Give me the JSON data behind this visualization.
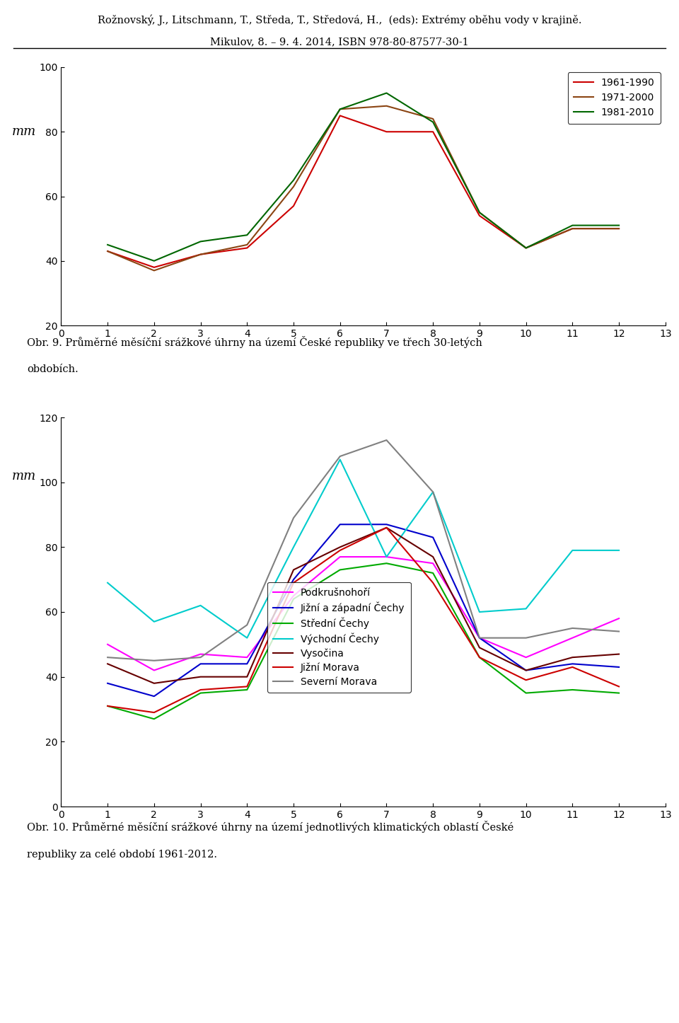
{
  "header_line1": "Rožnovský, J., Litschmann, T., Středa, T., Středová, H.,  (eds): Extrémy oběhu vody v krajině.",
  "header_line2": "Mikulov, 8. – 9. 4. 2014, ISBN 978-80-87577-30-1",
  "chart1": {
    "ylabel": "mm",
    "xlim": [
      0,
      13
    ],
    "ylim": [
      20,
      100
    ],
    "yticks": [
      20,
      40,
      60,
      80,
      100
    ],
    "xticks": [
      0,
      1,
      2,
      3,
      4,
      5,
      6,
      7,
      8,
      9,
      10,
      11,
      12,
      13
    ],
    "series": [
      {
        "label": "1961-1990",
        "color": "#cc0000",
        "data": [
          43,
          38,
          42,
          44,
          57,
          85,
          80,
          80,
          54,
          44,
          50,
          50
        ]
      },
      {
        "label": "1971-2000",
        "color": "#8B4513",
        "data": [
          43,
          37,
          42,
          45,
          63,
          87,
          88,
          84,
          55,
          44,
          50,
          50
        ]
      },
      {
        "label": "1981-2010",
        "color": "#006600",
        "data": [
          45,
          40,
          46,
          48,
          65,
          87,
          92,
          83,
          55,
          44,
          51,
          51
        ]
      }
    ],
    "caption_line1": "Obr. 9. Průměrné měsíční srážkové úhrny na území České republiky ve třech 30-letých",
    "caption_line2": "obdobích."
  },
  "chart2": {
    "ylabel": "mm",
    "xlim": [
      0,
      13
    ],
    "ylim": [
      0,
      120
    ],
    "yticks": [
      0,
      20,
      40,
      60,
      80,
      100,
      120
    ],
    "xticks": [
      0,
      1,
      2,
      3,
      4,
      5,
      6,
      7,
      8,
      9,
      10,
      11,
      12,
      13
    ],
    "series": [
      {
        "label": "Podkrušnohоří",
        "color": "#ff00ff",
        "data": [
          50,
          42,
          47,
          46,
          65,
          77,
          77,
          75,
          52,
          46,
          52,
          58
        ]
      },
      {
        "label": "Jižní a západní Čechy",
        "color": "#0000cc",
        "data": [
          38,
          34,
          44,
          44,
          70,
          87,
          87,
          83,
          52,
          42,
          44,
          43
        ]
      },
      {
        "label": "Střední Čechy",
        "color": "#00aa00",
        "data": [
          31,
          27,
          35,
          36,
          64,
          73,
          75,
          72,
          46,
          35,
          36,
          35
        ]
      },
      {
        "label": "Východní Čechy",
        "color": "#00cccc",
        "data": [
          69,
          57,
          62,
          52,
          80,
          107,
          77,
          97,
          60,
          61,
          79,
          79
        ]
      },
      {
        "label": "Vysočina",
        "color": "#660000",
        "data": [
          44,
          38,
          40,
          40,
          73,
          80,
          86,
          77,
          49,
          42,
          46,
          47
        ]
      },
      {
        "label": "Jižní Morava",
        "color": "#cc0000",
        "data": [
          31,
          29,
          36,
          37,
          69,
          79,
          86,
          69,
          46,
          39,
          43,
          37
        ]
      },
      {
        "label": "Severní Morava",
        "color": "#808080",
        "data": [
          46,
          45,
          46,
          56,
          89,
          108,
          113,
          97,
          52,
          52,
          55,
          54
        ]
      }
    ],
    "caption_line1": "Obr. 10. Průměrné měsíční srážkové úhrny na území jednotlivých klimatických oblastí České",
    "caption_line2": "republiky za celé období 1961-2012."
  }
}
